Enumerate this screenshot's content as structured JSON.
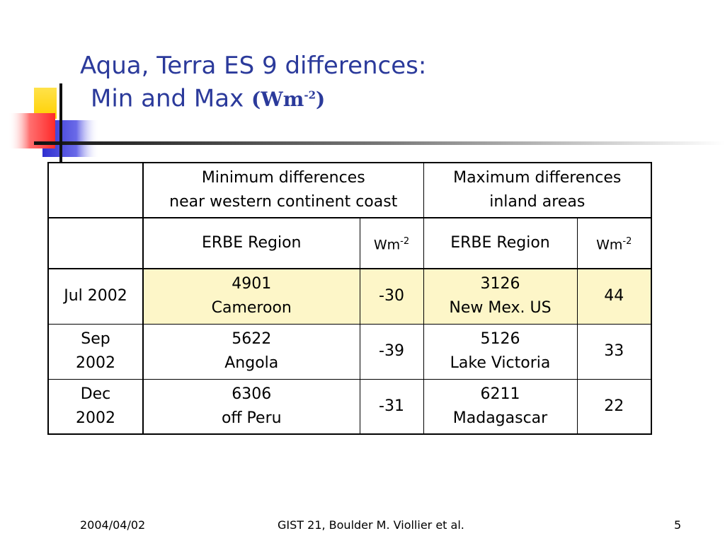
{
  "slide": {
    "title_line1": "Aqua, Terra ES 9 differences:",
    "title_line2": "Min and Max",
    "title_unit_base": "Wm",
    "title_unit_sup": "-2"
  },
  "table": {
    "header1": {
      "min": [
        "Minimum differences",
        "near western continent coast"
      ],
      "max": [
        "Maximum differences",
        "inland areas"
      ]
    },
    "header2": {
      "region": "ERBE Region",
      "unit_base": "Wm",
      "unit_sup": "-2"
    },
    "rows": [
      {
        "date": [
          "Jul 2002"
        ],
        "min_region": [
          "4901",
          "Cameroon"
        ],
        "min_value": "-30",
        "max_region": [
          "3126",
          "New Mex. US"
        ],
        "max_value": "44"
      },
      {
        "date": [
          "Sep",
          "2002"
        ],
        "min_region": [
          "5622",
          "Angola"
        ],
        "min_value": "-39",
        "max_region": [
          "5126",
          "Lake Victoria"
        ],
        "max_value": "33"
      },
      {
        "date": [
          "Dec",
          "2002"
        ],
        "min_region": [
          "6306",
          "off Peru"
        ],
        "min_value": "-31",
        "max_region": [
          "6211",
          "Madagascar"
        ],
        "max_value": "22"
      }
    ]
  },
  "footer": {
    "date": "2004/04/02",
    "center": "GIST 21, Boulder  M. Viollier et  al.",
    "page": "5"
  },
  "colors": {
    "title": "#2b3a9b",
    "highlight_row": "#fdf6c8",
    "deco_yellow": "#ffd700",
    "deco_blue": "#3a3ad8",
    "deco_red": "#ff3b3b"
  }
}
